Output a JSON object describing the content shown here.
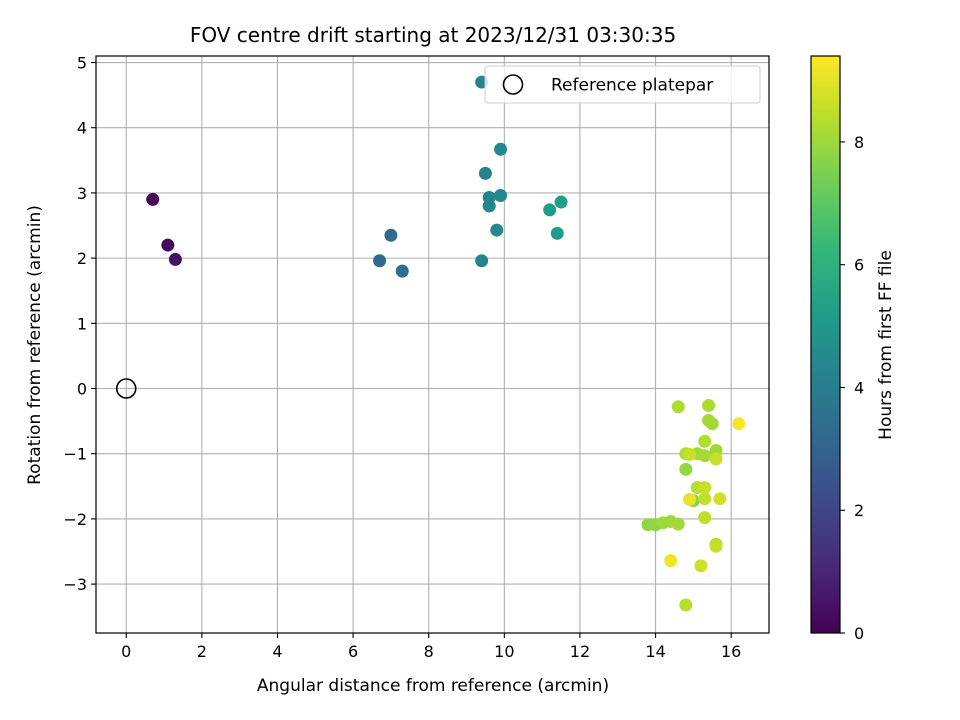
{
  "chart_data": {
    "type": "scatter",
    "title": "FOV centre drift starting at 2023/12/31 03:30:35",
    "xlabel": "Angular distance from reference (arcmin)",
    "ylabel": "Rotation from reference (arcmin)",
    "xlim": [
      -0.8,
      17.0
    ],
    "ylim": [
      -3.75,
      5.1
    ],
    "xticks": [
      0,
      2,
      4,
      6,
      8,
      10,
      12,
      14,
      16
    ],
    "yticks": [
      -3,
      -2,
      -1,
      0,
      1,
      2,
      3,
      4,
      5
    ],
    "grid": true,
    "legend": {
      "position": "top-right",
      "entries": [
        "Reference platepar"
      ]
    },
    "reference_point": {
      "x": 0,
      "y": 0
    },
    "colorbar": {
      "label": "Hours from first FF file",
      "range": [
        0,
        9.4
      ],
      "ticks": [
        0,
        2,
        4,
        6,
        8
      ],
      "colormap": "viridis"
    },
    "points": [
      {
        "x": 0.7,
        "y": 2.9,
        "c": 0.2
      },
      {
        "x": 1.1,
        "y": 2.2,
        "c": 0.3
      },
      {
        "x": 1.3,
        "y": 1.98,
        "c": 0.4
      },
      {
        "x": 6.7,
        "y": 1.96,
        "c": 3.2
      },
      {
        "x": 7.0,
        "y": 2.35,
        "c": 3.3
      },
      {
        "x": 7.3,
        "y": 1.8,
        "c": 3.4
      },
      {
        "x": 9.4,
        "y": 4.7,
        "c": 4.3
      },
      {
        "x": 9.5,
        "y": 3.3,
        "c": 4.2
      },
      {
        "x": 9.9,
        "y": 3.67,
        "c": 4.4
      },
      {
        "x": 9.6,
        "y": 2.93,
        "c": 4.3
      },
      {
        "x": 9.9,
        "y": 2.96,
        "c": 4.4
      },
      {
        "x": 9.6,
        "y": 2.8,
        "c": 4.3
      },
      {
        "x": 9.8,
        "y": 2.43,
        "c": 4.4
      },
      {
        "x": 9.4,
        "y": 1.96,
        "c": 4.2
      },
      {
        "x": 11.2,
        "y": 2.74,
        "c": 5.2
      },
      {
        "x": 11.5,
        "y": 2.86,
        "c": 5.3
      },
      {
        "x": 11.4,
        "y": 2.38,
        "c": 5.2
      },
      {
        "x": 14.6,
        "y": -0.28,
        "c": 8.2
      },
      {
        "x": 15.4,
        "y": -0.26,
        "c": 8.2
      },
      {
        "x": 15.4,
        "y": -0.49,
        "c": 8.1
      },
      {
        "x": 15.5,
        "y": -0.54,
        "c": 8.0
      },
      {
        "x": 16.2,
        "y": -0.54,
        "c": 9.3
      },
      {
        "x": 15.3,
        "y": -0.81,
        "c": 8.3
      },
      {
        "x": 14.8,
        "y": -1.0,
        "c": 8.2
      },
      {
        "x": 14.9,
        "y": -1.01,
        "c": 8.6
      },
      {
        "x": 15.1,
        "y": -1.0,
        "c": 8.0
      },
      {
        "x": 15.3,
        "y": -1.03,
        "c": 8.1
      },
      {
        "x": 15.6,
        "y": -0.95,
        "c": 8.0
      },
      {
        "x": 15.6,
        "y": -1.08,
        "c": 8.6
      },
      {
        "x": 14.8,
        "y": -1.24,
        "c": 7.9
      },
      {
        "x": 15.1,
        "y": -1.52,
        "c": 8.4
      },
      {
        "x": 15.3,
        "y": -1.52,
        "c": 8.6
      },
      {
        "x": 14.9,
        "y": -1.7,
        "c": 9.1
      },
      {
        "x": 15.0,
        "y": -1.72,
        "c": 7.7
      },
      {
        "x": 15.3,
        "y": -1.69,
        "c": 8.5
      },
      {
        "x": 15.7,
        "y": -1.69,
        "c": 8.7
      },
      {
        "x": 15.3,
        "y": -1.98,
        "c": 8.5
      },
      {
        "x": 13.8,
        "y": -2.09,
        "c": 7.8
      },
      {
        "x": 14.0,
        "y": -2.09,
        "c": 7.8
      },
      {
        "x": 14.2,
        "y": -2.06,
        "c": 8.0
      },
      {
        "x": 14.4,
        "y": -2.04,
        "c": 8.0
      },
      {
        "x": 14.6,
        "y": -2.08,
        "c": 8.1
      },
      {
        "x": 15.6,
        "y": -2.39,
        "c": 8.2
      },
      {
        "x": 15.6,
        "y": -2.42,
        "c": 8.6
      },
      {
        "x": 14.4,
        "y": -2.64,
        "c": 9.2
      },
      {
        "x": 15.2,
        "y": -2.72,
        "c": 8.7
      },
      {
        "x": 14.8,
        "y": -3.32,
        "c": 8.4
      }
    ]
  }
}
